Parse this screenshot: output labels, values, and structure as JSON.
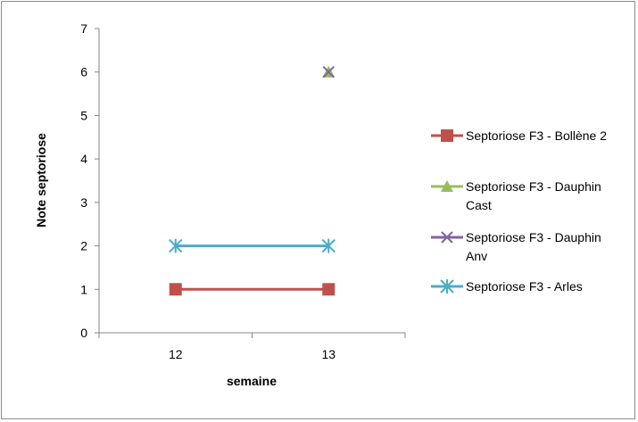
{
  "chart_data": {
    "type": "line",
    "x": [
      "12",
      "13"
    ],
    "xlabel": "semaine",
    "ylabel": "Note septoriose",
    "ylim": [
      0,
      7
    ],
    "yticks": [
      "0",
      "1",
      "2",
      "3",
      "4",
      "5",
      "6",
      "7"
    ],
    "grid": false,
    "legend_position": "right",
    "series": [
      {
        "name": "Septoriose F3 - Bollène 2",
        "legend_lines": [
          "Septoriose F3 - Bollène 2"
        ],
        "color": "#c0504d",
        "marker": "square",
        "values": [
          1,
          1
        ]
      },
      {
        "name": "Septoriose F3 - Dauphin Cast",
        "legend_lines": [
          "Septoriose F3 - Dauphin",
          "Cast"
        ],
        "color": "#9bbb59",
        "marker": "triangle",
        "values": [
          null,
          6
        ]
      },
      {
        "name": "Septoriose F3 - Dauphin Anv",
        "legend_lines": [
          "Septoriose F3 - Dauphin",
          "Anv"
        ],
        "color": "#8064a2",
        "marker": "x",
        "values": [
          null,
          6
        ]
      },
      {
        "name": "Septoriose F3 - Arles",
        "legend_lines": [
          "Septoriose F3 - Arles"
        ],
        "color": "#4bacc6",
        "marker": "star",
        "values": [
          2,
          2
        ]
      }
    ]
  }
}
